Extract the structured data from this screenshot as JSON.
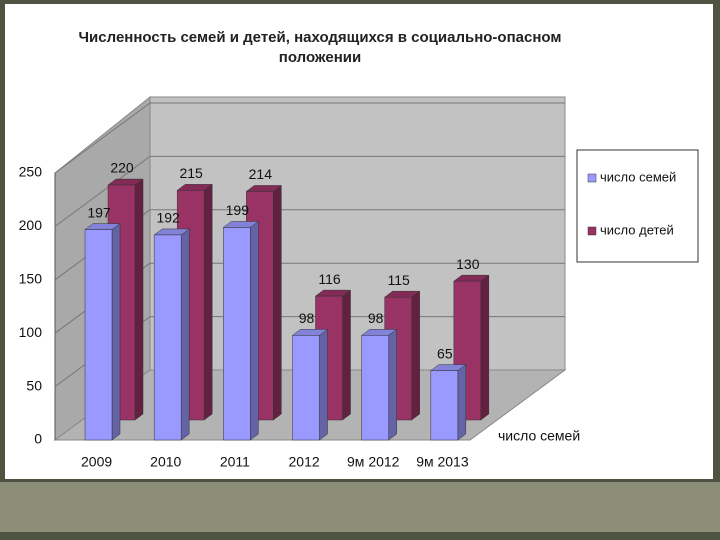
{
  "chart_data": {
    "type": "bar3d",
    "title": "Численность  семей и детей,  находящихся в социально-опасном положении",
    "categories": [
      "2009",
      "2010",
      "2011",
      "2012",
      "9м 2012",
      "9м 2013"
    ],
    "series": [
      {
        "name": "число семей",
        "color": "#9999ff",
        "values": [
          197,
          192,
          199,
          98,
          98,
          65
        ]
      },
      {
        "name": "число детей",
        "color": "#993366",
        "values": [
          220,
          215,
          214,
          116,
          115,
          130
        ]
      }
    ],
    "depth_label": "число семей",
    "ylim": [
      0,
      250
    ],
    "yticks": [
      0,
      50,
      100,
      150,
      200,
      250
    ],
    "grid": true,
    "legend": "right"
  }
}
